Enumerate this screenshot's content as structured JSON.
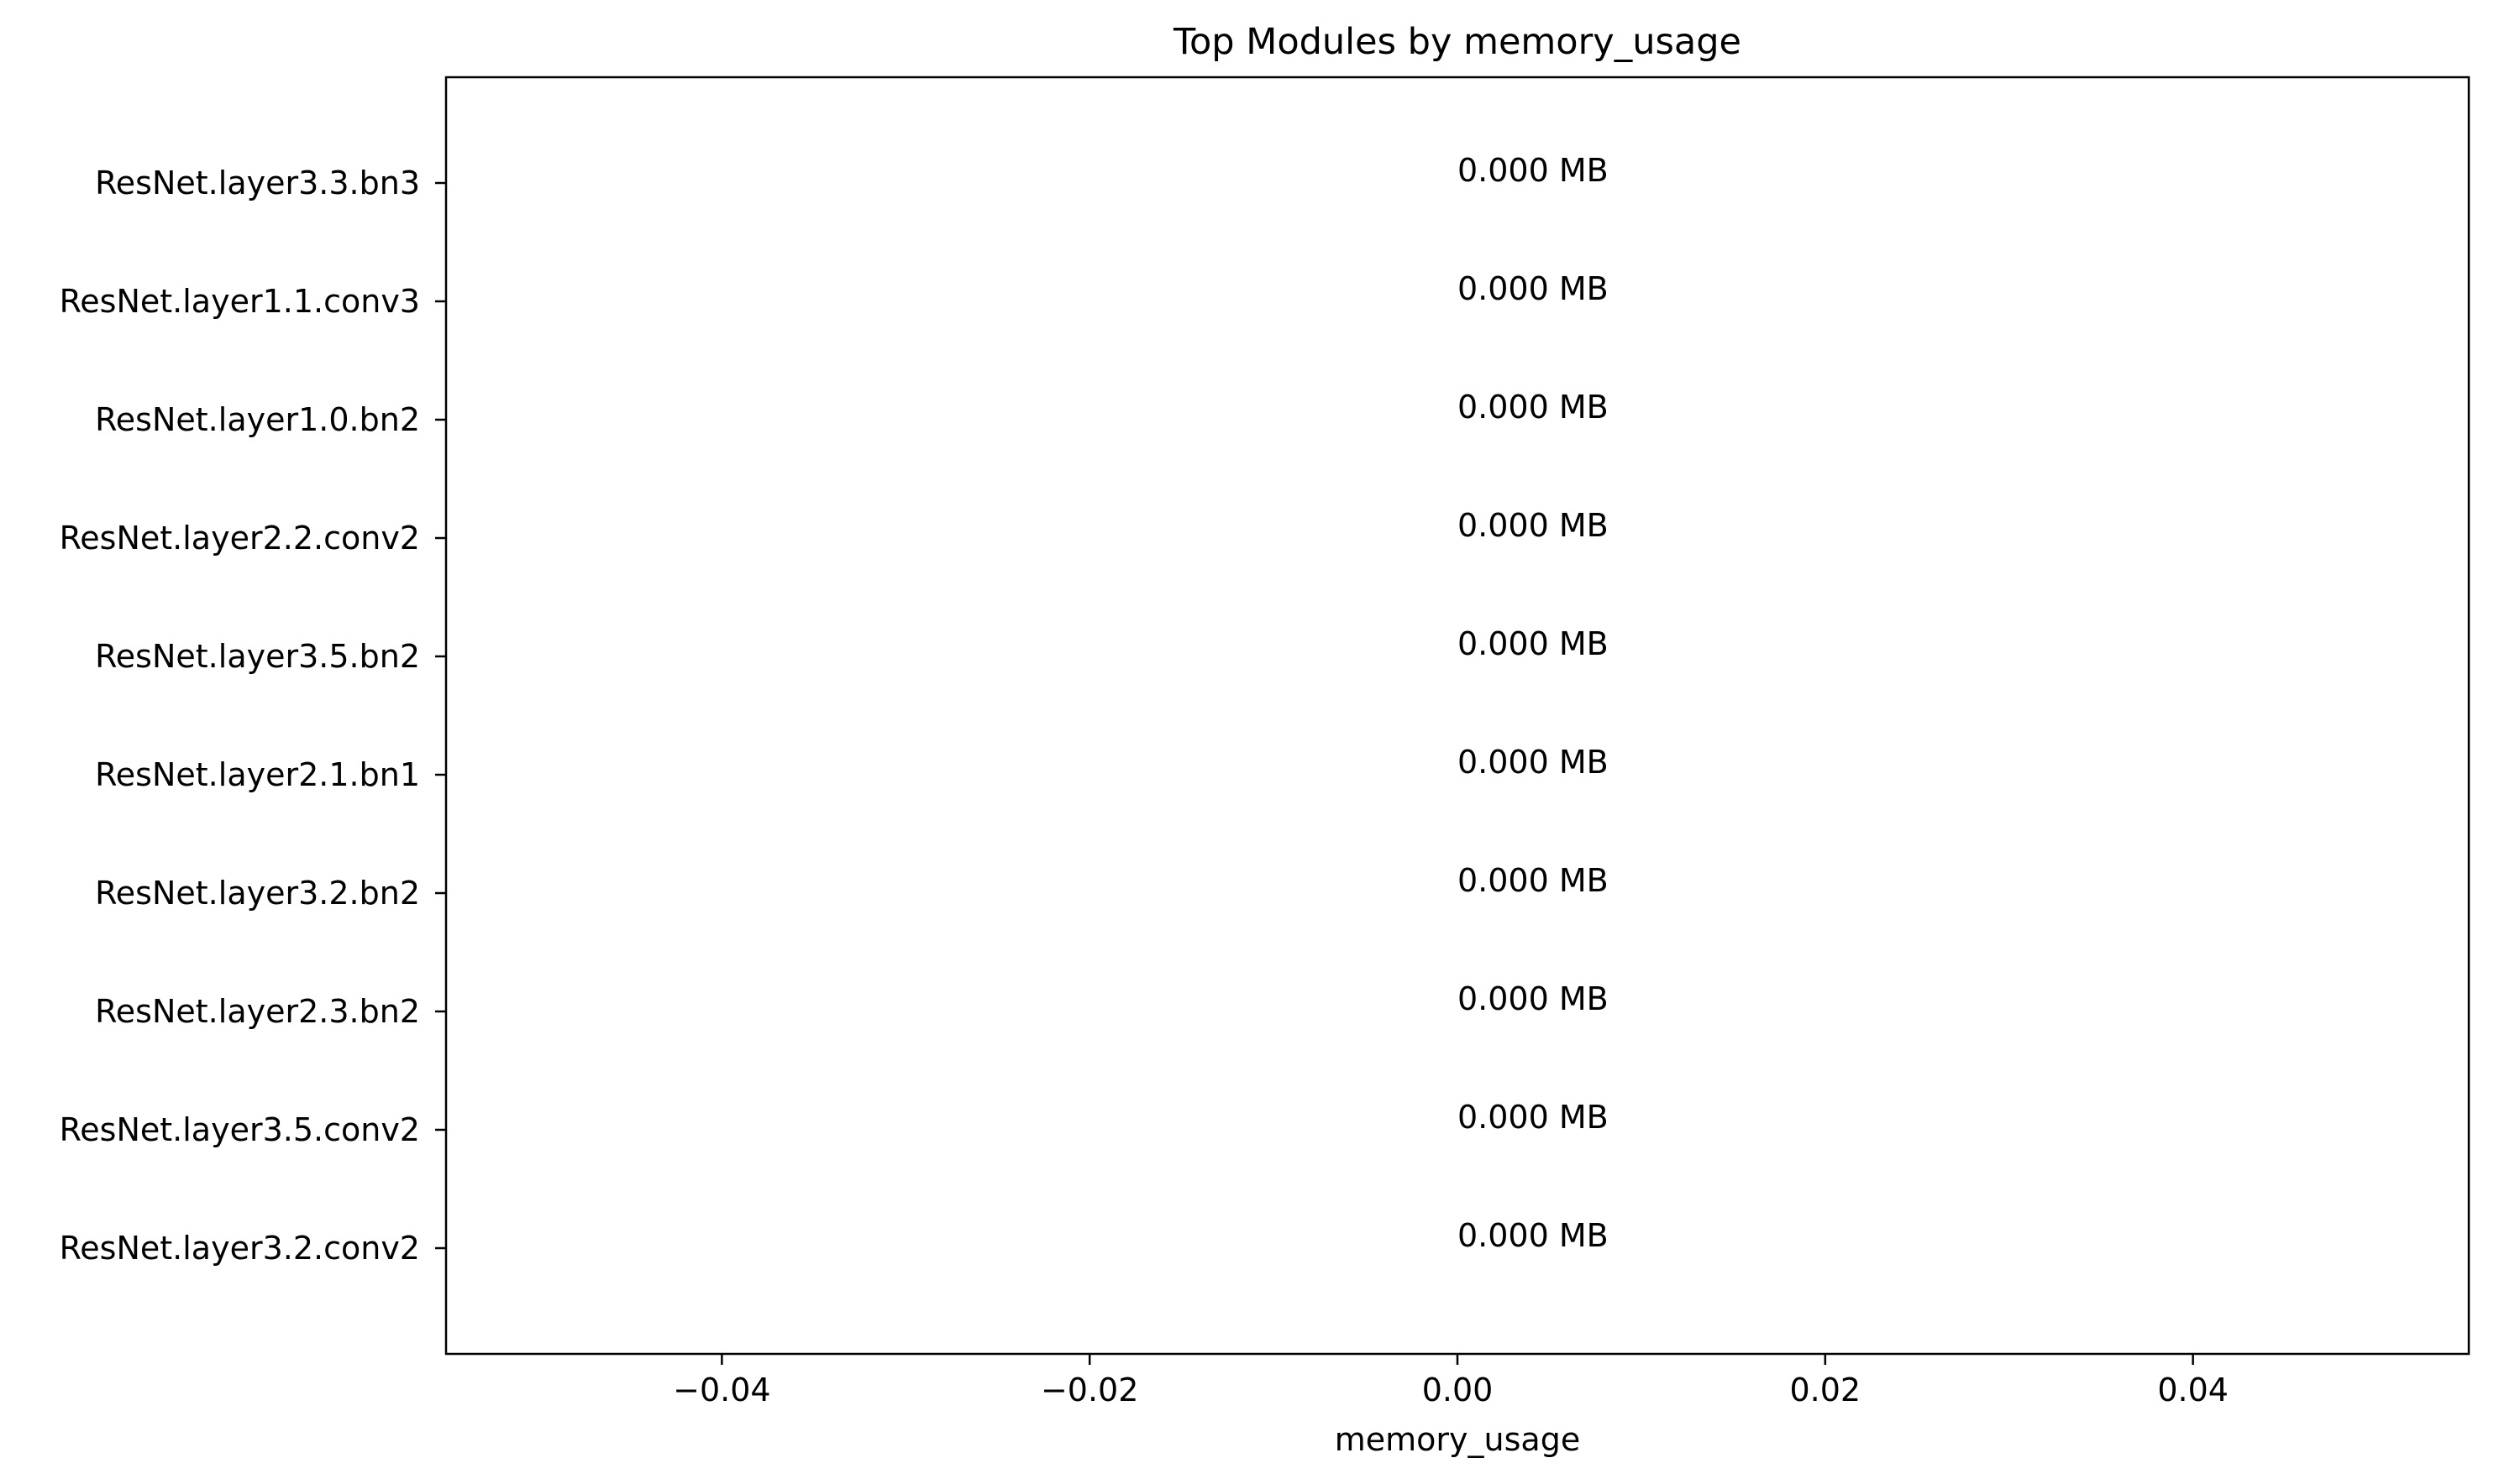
{
  "chart_data": {
    "type": "bar",
    "orientation": "horizontal",
    "title": "Top Modules by memory_usage",
    "xlabel": "memory_usage",
    "ylabel": "",
    "xlim": [
      -0.055,
      0.055
    ],
    "xticks": [
      -0.04,
      -0.02,
      0.0,
      0.02,
      0.04
    ],
    "xtick_labels": [
      "−0.04",
      "−0.02",
      "0.00",
      "0.02",
      "0.04"
    ],
    "categories": [
      "ResNet.layer3.3.bn3",
      "ResNet.layer1.1.conv3",
      "ResNet.layer1.0.bn2",
      "ResNet.layer2.2.conv2",
      "ResNet.layer3.5.bn2",
      "ResNet.layer2.1.bn1",
      "ResNet.layer3.2.bn2",
      "ResNet.layer2.3.bn2",
      "ResNet.layer3.5.conv2",
      "ResNet.layer3.2.conv2"
    ],
    "values": [
      0,
      0,
      0,
      0,
      0,
      0,
      0,
      0,
      0,
      0
    ],
    "data_labels": [
      "0.000 MB",
      "0.000 MB",
      "0.000 MB",
      "0.000 MB",
      "0.000 MB",
      "0.000 MB",
      "0.000 MB",
      "0.000 MB",
      "0.000 MB",
      "0.000 MB"
    ],
    "grid": false,
    "bar_color": "#1f77b4"
  }
}
